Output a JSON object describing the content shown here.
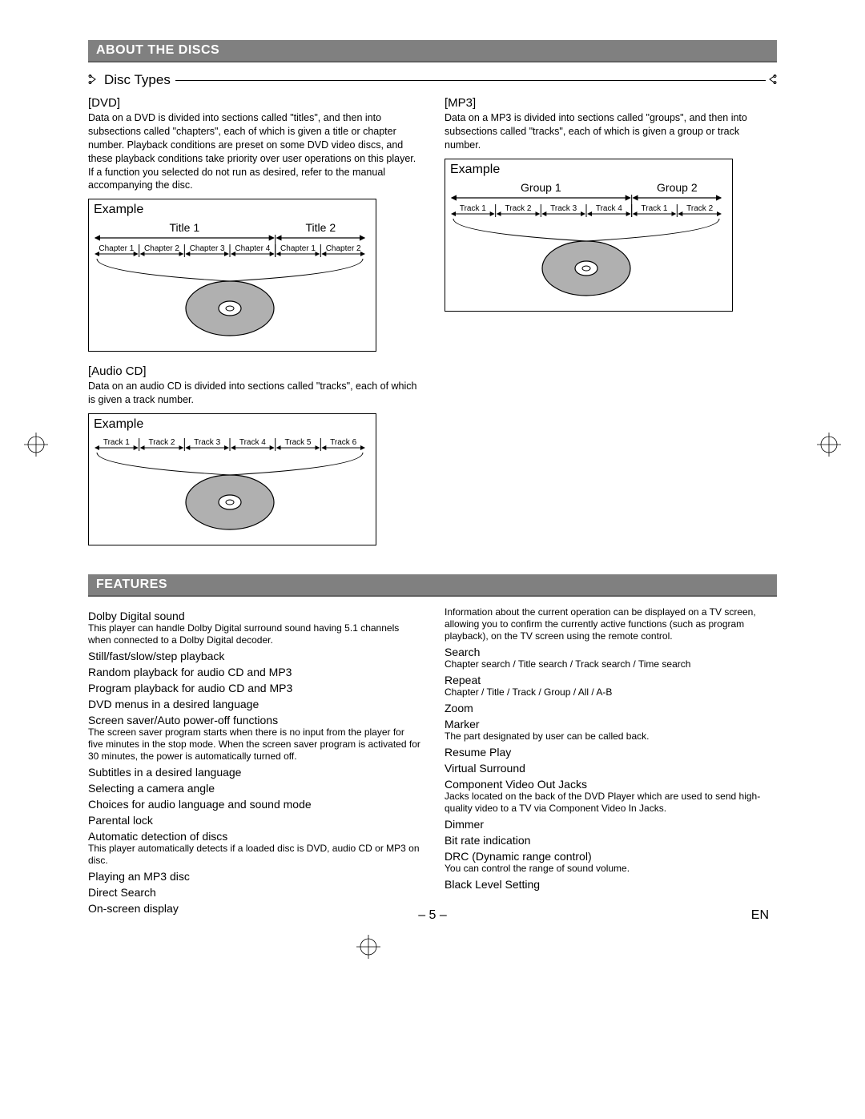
{
  "section1": {
    "title": "ABOUT THE DISCS"
  },
  "subsection1": {
    "title": "Disc Types"
  },
  "dvd": {
    "label": "[DVD]",
    "text": "Data on a DVD is divided into sections called \"titles\", and then into subsections called \"chapters\", each of which is given a title or chapter number. Playback conditions are preset on some DVD video discs, and these playback conditions take priority over user operations on this player. If a function you selected do not run as desired, refer to the manual accompanying the disc.",
    "example_label": "Example",
    "diagram": {
      "groups": [
        "Title 1",
        "Title 2"
      ],
      "items": [
        "Chapter 1",
        "Chapter 2",
        "Chapter 3",
        "Chapter 4",
        "Chapter 1",
        "Chapter 2"
      ],
      "group_split": 4,
      "fontsize_items": 10,
      "fontsize_groups": 14,
      "disc_fill": "#b0b0b0",
      "disc_stroke": "#000000"
    }
  },
  "audiocd": {
    "label": "[Audio CD]",
    "text": "Data on an audio CD is divided into sections called \"tracks\", each of which is given a track number.",
    "example_label": "Example",
    "diagram": {
      "items": [
        "Track 1",
        "Track 2",
        "Track 3",
        "Track 4",
        "Track 5",
        "Track 6"
      ],
      "fontsize_items": 10,
      "disc_fill": "#b0b0b0",
      "disc_stroke": "#000000"
    }
  },
  "mp3": {
    "label": "[MP3]",
    "text": "Data on a MP3 is divided into sections called \"groups\", and then into subsections called \"tracks\", each of which is given a group or track number.",
    "example_label": "Example",
    "diagram": {
      "groups": [
        "Group 1",
        "Group 2"
      ],
      "items": [
        "Track 1",
        "Track 2",
        "Track 3",
        "Track 4",
        "Track 1",
        "Track 2"
      ],
      "group_split": 4,
      "fontsize_items": 10,
      "fontsize_groups": 14,
      "disc_fill": "#b0b0b0",
      "disc_stroke": "#000000"
    }
  },
  "section2": {
    "title": "FEATURES"
  },
  "features_left": [
    {
      "title": "Dolby Digital sound",
      "desc": "This player can handle Dolby Digital surround sound having 5.1 channels when connected to a Dolby Digital decoder."
    },
    {
      "title": "Still/fast/slow/step playback"
    },
    {
      "title": "Random playback for audio CD and MP3"
    },
    {
      "title": "Program playback for audio CD and MP3"
    },
    {
      "title": "DVD menus in a desired language"
    },
    {
      "title": "Screen saver/Auto power-off functions",
      "desc": "The screen saver program starts when there is no input from the player for five minutes in the stop mode.  When the screen saver program is activated for 30 minutes, the power is automatically turned off."
    },
    {
      "title": "Subtitles in a desired language"
    },
    {
      "title": "Selecting a camera angle"
    },
    {
      "title": "Choices for audio language and sound mode"
    },
    {
      "title": "Parental lock"
    },
    {
      "title": "Automatic detection of discs",
      "desc": "This player automatically detects if a loaded disc is DVD, audio CD or MP3 on disc."
    },
    {
      "title": "Playing an MP3 disc"
    },
    {
      "title": "Direct Search"
    },
    {
      "title": "On-screen display"
    }
  ],
  "features_right": [
    {
      "desc": "Information about the current operation can be displayed on a TV screen, allowing you to confirm the currently active functions (such as program playback), on the TV screen using the remote control."
    },
    {
      "title": "Search",
      "desc": "Chapter search / Title search / Track search / Time search"
    },
    {
      "title": "Repeat",
      "desc": "Chapter / Title / Track / Group / All / A-B"
    },
    {
      "title": "Zoom"
    },
    {
      "title": "Marker",
      "desc": "The part designated by user can be called back."
    },
    {
      "title": "Resume Play"
    },
    {
      "title": "Virtual Surround"
    },
    {
      "title": "Component Video Out Jacks",
      "desc": "Jacks located on the back of the DVD Player which are used to send high-quality video to a TV via Component Video In Jacks."
    },
    {
      "title": "Dimmer"
    },
    {
      "title": "Bit rate indication"
    },
    {
      "title": "DRC (Dynamic range control)",
      "desc": "You can control the range of sound volume."
    },
    {
      "title": "Black Level Setting"
    }
  ],
  "footer": {
    "page": "– 5 –",
    "lang": "EN"
  }
}
